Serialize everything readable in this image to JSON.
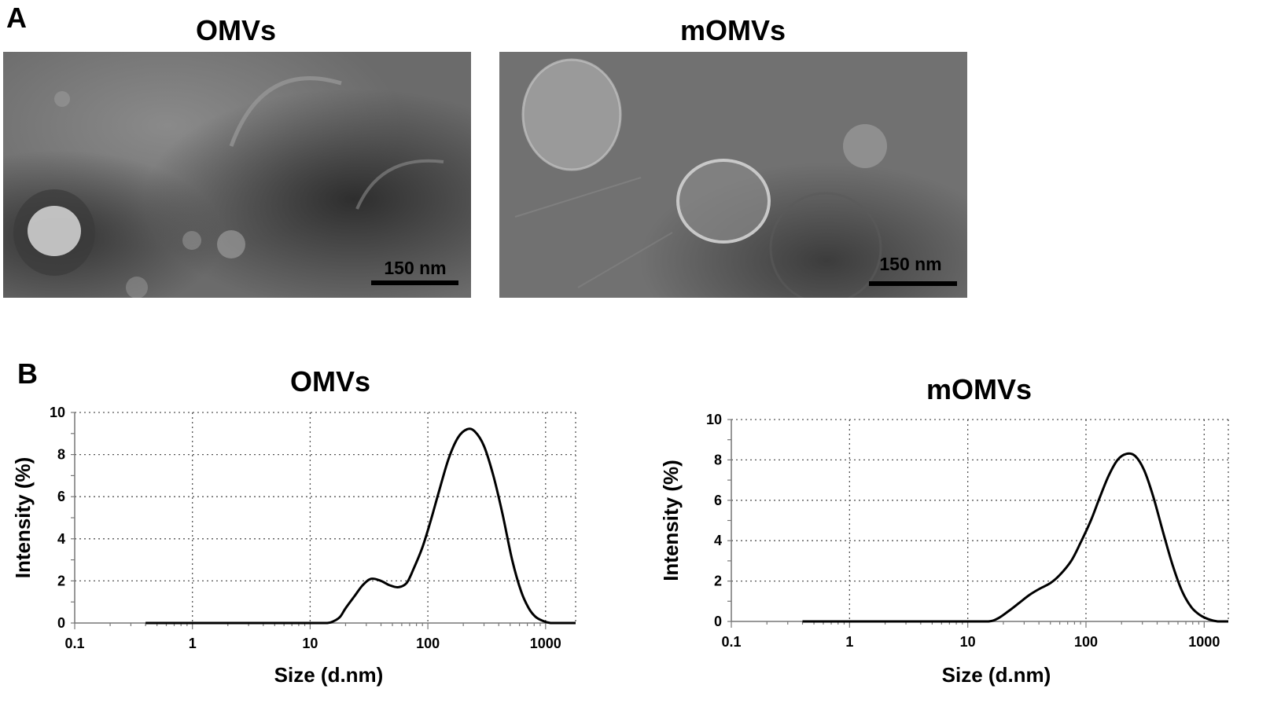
{
  "panel_a": {
    "letter": "A",
    "images": [
      {
        "title": "OMVs",
        "scale_bar": "150 nm"
      },
      {
        "title": "mOMVs",
        "scale_bar": "150 nm"
      }
    ]
  },
  "panel_b": {
    "letter": "B"
  },
  "colors": {
    "line": "#000000",
    "grid": "#555555",
    "tem_base": "#6a6a6a"
  },
  "chart_data": [
    {
      "type": "line",
      "title": "OMVs",
      "xlabel": "Size (d.nm)",
      "ylabel": "Intensity (%)",
      "x_scale": "log",
      "xlim": [
        0.1,
        1800
      ],
      "ylim": [
        0,
        10
      ],
      "x_ticks": [
        0.1,
        1,
        10,
        100,
        1000
      ],
      "x_tick_labels": [
        "0.1",
        "1",
        "10",
        "100",
        "1000"
      ],
      "y_ticks": [
        0,
        2,
        4,
        6,
        8,
        10
      ],
      "y_tick_labels": [
        "0",
        "2",
        "4",
        "6",
        "8",
        "10"
      ],
      "grid": true,
      "series": [
        {
          "x": [
            0.4,
            5,
            10,
            14,
            16,
            18,
            20,
            24,
            28,
            33,
            40,
            47,
            56,
            66,
            76,
            90,
            105,
            125,
            150,
            180,
            215,
            250,
            300,
            360,
            430,
            520,
            620,
            720,
            820,
            950,
            1100,
            1300,
            1500,
            1800
          ],
          "y": [
            0,
            0,
            0,
            0,
            0.1,
            0.3,
            0.7,
            1.3,
            1.8,
            2.1,
            2.0,
            1.8,
            1.7,
            1.9,
            2.6,
            3.6,
            4.8,
            6.3,
            7.8,
            8.8,
            9.2,
            9.1,
            8.4,
            7.0,
            5.2,
            3.0,
            1.5,
            0.7,
            0.3,
            0.1,
            0,
            0,
            0,
            0
          ]
        }
      ]
    },
    {
      "type": "line",
      "title": "mOMVs",
      "xlabel": "Size (d.nm)",
      "ylabel": "Intensity (%)",
      "x_scale": "log",
      "xlim": [
        0.1,
        1600
      ],
      "ylim": [
        0,
        10
      ],
      "x_ticks": [
        0.1,
        1,
        10,
        100,
        1000
      ],
      "x_tick_labels": [
        "0.1",
        "1",
        "10",
        "100",
        "1000"
      ],
      "y_ticks": [
        0,
        2,
        4,
        6,
        8,
        10
      ],
      "y_tick_labels": [
        "0",
        "2",
        "4",
        "6",
        "8",
        "10"
      ],
      "grid": true,
      "series": [
        {
          "x": [
            0.4,
            5,
            10,
            15,
            18,
            22,
            27,
            33,
            40,
            50,
            60,
            75,
            90,
            110,
            130,
            155,
            185,
            220,
            260,
            310,
            370,
            450,
            540,
            650,
            780,
            930,
            1100,
            1300,
            1600
          ],
          "y": [
            0,
            0,
            0,
            0,
            0.15,
            0.5,
            0.9,
            1.3,
            1.6,
            1.9,
            2.3,
            3.0,
            3.9,
            5.0,
            6.1,
            7.2,
            8.0,
            8.3,
            8.2,
            7.5,
            6.2,
            4.4,
            2.8,
            1.5,
            0.7,
            0.3,
            0.1,
            0,
            0
          ]
        }
      ]
    }
  ]
}
